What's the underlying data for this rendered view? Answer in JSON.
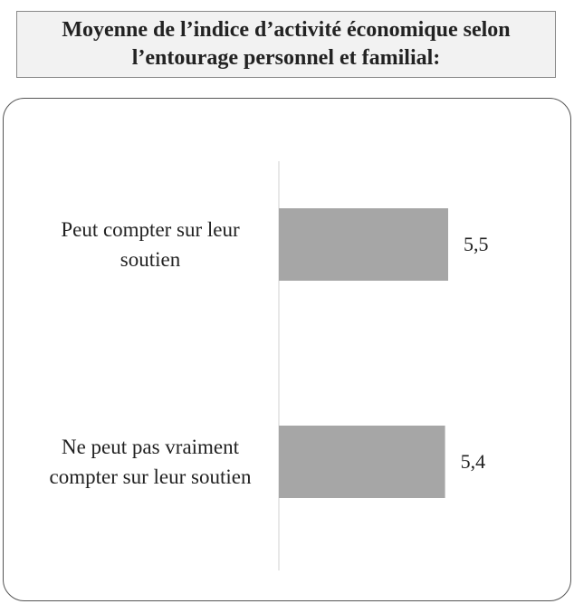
{
  "chart_data": {
    "type": "bar",
    "orientation": "horizontal",
    "title": "Moyenne de l’indice d’activité économique selon l’entourage personnel et familial:",
    "categories": [
      "Peut compter sur leur soutien",
      "Ne peut pas vraiment compter sur leur soutien"
    ],
    "values": [
      5.5,
      5.4
    ],
    "value_labels": [
      "5,5",
      "5,4"
    ],
    "color": "#a6a6a6",
    "xlim": [
      0,
      9
    ]
  }
}
